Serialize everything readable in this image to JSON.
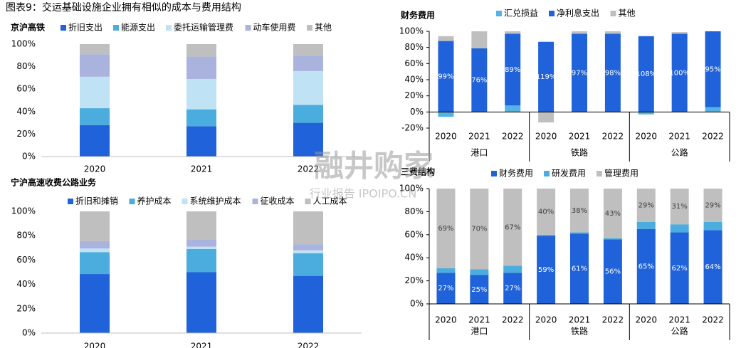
{
  "title": "图表9：交运基础设施企业拥有相似的成本与费用结构",
  "watermark": [
    "融井购家",
    "行业报告 IPOIPO.CN"
  ],
  "chart_data": [
    {
      "type": "stacked_bar",
      "title": "京沪高铁",
      "categories": [
        "2020",
        "2021",
        "2022"
      ],
      "series": [
        {
          "name": "折旧支出",
          "color": "#2062d9",
          "values": [
            28,
            27,
            30
          ]
        },
        {
          "name": "能源支出",
          "color": "#4badde",
          "values": [
            15,
            15,
            16
          ]
        },
        {
          "name": "委托运输管理费",
          "color": "#bfe3f5",
          "values": [
            28,
            27,
            30
          ]
        },
        {
          "name": "动车使用费",
          "color": "#a9b3dd",
          "values": [
            20,
            20,
            14
          ]
        },
        {
          "name": "其他",
          "color": "#bfbfbf",
          "values": [
            9,
            11,
            10
          ]
        }
      ],
      "ylim": [
        0,
        100
      ],
      "yticks": [
        {
          "value": 0,
          "label": "0%"
        },
        {
          "value": 20,
          "label": "20%"
        },
        {
          "value": 40,
          "label": "40%"
        },
        {
          "value": 60,
          "label": "60%"
        },
        {
          "value": 80,
          "label": "80%"
        },
        {
          "value": 100,
          "label": "100%"
        }
      ]
    },
    {
      "type": "stacked_bar",
      "title": "宁沪高速收费公路业务",
      "categories": [
        "2020",
        "2021",
        "2022"
      ],
      "series": [
        {
          "name": "折旧和摊销",
          "color": "#2062d9",
          "values": [
            48.5,
            50,
            47
          ]
        },
        {
          "name": "养护成本",
          "color": "#4badde",
          "values": [
            18,
            19,
            18.5
          ]
        },
        {
          "name": "系统维护成本",
          "color": "#bfe3f5",
          "values": [
            3,
            2,
            2.5
          ]
        },
        {
          "name": "征收成本",
          "color": "#a9b3dd",
          "values": [
            6,
            6,
            5
          ]
        },
        {
          "name": "人工成本",
          "color": "#bfbfbf",
          "values": [
            24.5,
            23,
            27
          ]
        }
      ],
      "ylim": [
        0,
        100
      ],
      "yticks": [
        {
          "value": 0,
          "label": "0%"
        },
        {
          "value": 20,
          "label": "20%"
        },
        {
          "value": 40,
          "label": "40%"
        },
        {
          "value": 60,
          "label": "60%"
        },
        {
          "value": 80,
          "label": "80%"
        },
        {
          "value": 100,
          "label": "100%"
        }
      ]
    },
    {
      "type": "stacked_bar",
      "title": "财务费用",
      "categories": [
        "2020",
        "2021",
        "2022",
        "2020",
        "2021",
        "2022",
        "2020",
        "2021",
        "2022"
      ],
      "groups": [
        "港口",
        "铁路",
        "公路"
      ],
      "series": [
        {
          "name": "汇兑损益",
          "color": "#55b3e4",
          "values": [
            -6,
            0,
            8,
            0,
            0,
            0,
            -3,
            0,
            6
          ]
        },
        {
          "name": "净利息支出",
          "color": "#2062d9",
          "values": [
            88,
            79,
            89,
            87,
            97,
            97,
            94,
            97,
            94
          ]
        },
        {
          "name": "其他",
          "color": "#bfbfbf",
          "values": [
            6,
            21,
            3,
            -13,
            3,
            3,
            0,
            2,
            0
          ]
        }
      ],
      "annotations": [
        "99%",
        "76%",
        "89%",
        "119%",
        "97%",
        "98%",
        "108%",
        "100%",
        "95%"
      ],
      "ylim": [
        -20,
        100
      ],
      "yticks": [
        {
          "value": -20,
          "label": "-20%"
        },
        {
          "value": 0,
          "label": "0%"
        },
        {
          "value": 20,
          "label": "20%"
        },
        {
          "value": 40,
          "label": "40%"
        },
        {
          "value": 60,
          "label": "60%"
        },
        {
          "value": 80,
          "label": "80%"
        },
        {
          "value": 100,
          "label": "100%"
        }
      ]
    },
    {
      "type": "stacked_bar",
      "title": "三费结构",
      "categories": [
        "2020",
        "2021",
        "2022",
        "2020",
        "2021",
        "2022",
        "2020",
        "2021",
        "2022"
      ],
      "groups": [
        "港口",
        "铁路",
        "公路"
      ],
      "series": [
        {
          "name": "财务费用",
          "color": "#2062d9",
          "values": [
            27,
            25,
            27,
            59,
            61,
            56,
            65,
            62,
            64
          ],
          "value_labels": [
            "27%",
            "25%",
            "27%",
            "59%",
            "61%",
            "56%",
            "65%",
            "62%",
            "64%"
          ]
        },
        {
          "name": "研发费用",
          "color": "#4badde",
          "values": [
            4,
            5,
            6,
            1,
            1,
            1,
            6,
            7,
            7
          ]
        },
        {
          "name": "管理费用",
          "color": "#bfbfbf",
          "values": [
            69,
            70,
            67,
            40,
            38,
            43,
            29,
            31,
            29
          ],
          "value_labels": [
            "69%",
            "70%",
            "67%",
            "40%",
            "38%",
            "43%",
            "29%",
            "31%",
            "29%"
          ]
        }
      ],
      "ylim": [
        0,
        100
      ],
      "yticks": [
        {
          "value": 0,
          "label": "0%"
        },
        {
          "value": 20,
          "label": "20%"
        },
        {
          "value": 40,
          "label": "40%"
        },
        {
          "value": 60,
          "label": "60%"
        },
        {
          "value": 80,
          "label": "80%"
        },
        {
          "value": 100,
          "label": "100%"
        }
      ]
    }
  ]
}
